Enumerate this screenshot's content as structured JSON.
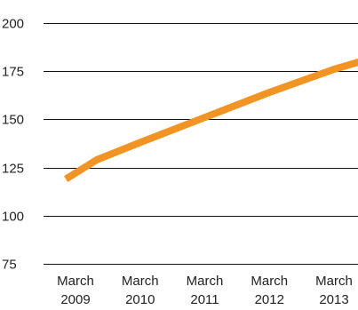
{
  "chart_data": {
    "type": "line",
    "title": "",
    "xlabel": "",
    "ylabel": "",
    "categories": [
      [
        "March",
        "2009"
      ],
      [
        "March",
        "2010"
      ],
      [
        "March",
        "2011"
      ],
      [
        "March",
        "2012"
      ],
      [
        "March",
        "2013"
      ]
    ],
    "x": [
      0,
      1,
      2,
      3,
      4
    ],
    "series": [
      {
        "color": "#f29423",
        "values": [
          {
            "x": -0.15,
            "y": 119
          },
          {
            "x": 0.33,
            "y": 129
          },
          {
            "x": 1.0,
            "y": 138
          },
          {
            "x": 2.0,
            "y": 151
          },
          {
            "x": 3.0,
            "y": 164
          },
          {
            "x": 4.0,
            "y": 176
          },
          {
            "x": 4.4,
            "y": 180
          }
        ]
      }
    ],
    "yticks": [
      75,
      100,
      125,
      150,
      175,
      200
    ],
    "ylim": [
      75,
      200
    ],
    "xlim": [
      -0.15,
      4.4
    ],
    "grid": "horizontal",
    "legend": "none"
  }
}
